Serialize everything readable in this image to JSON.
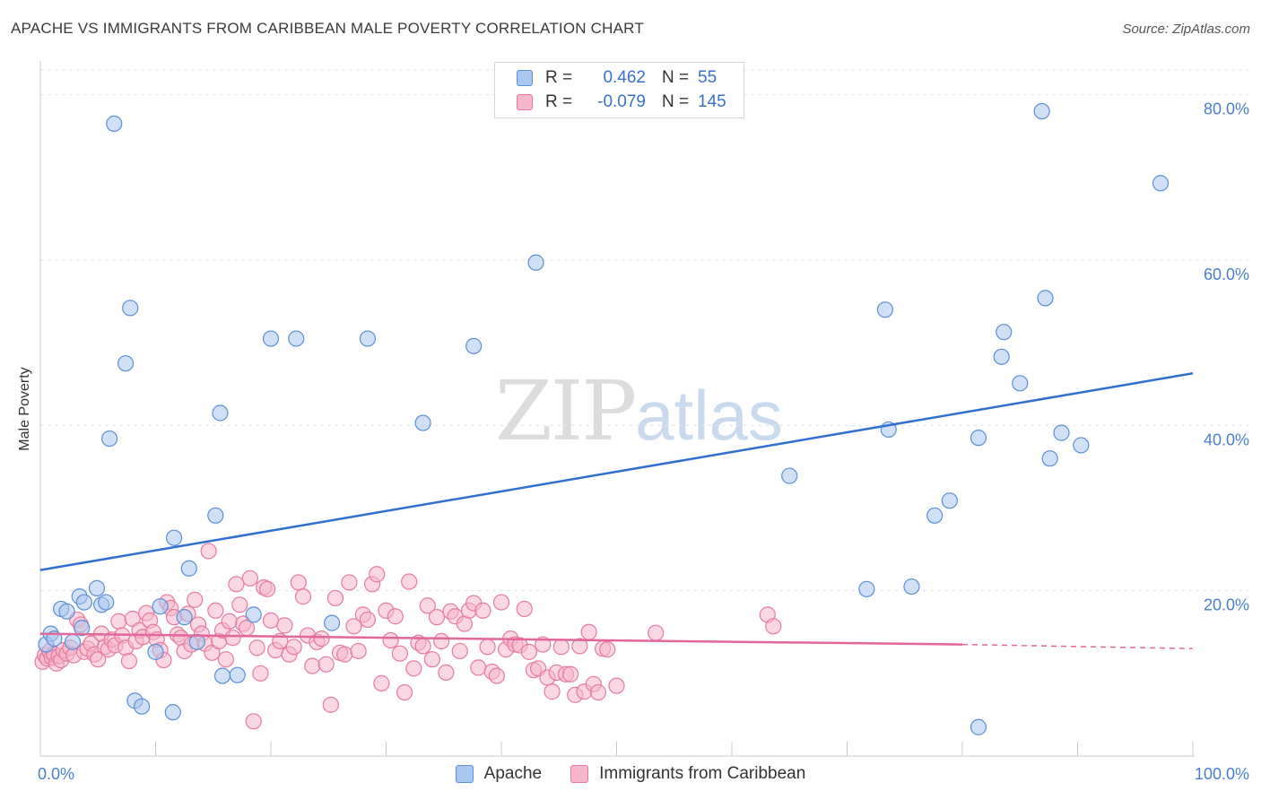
{
  "header": {
    "title": "APACHE VS IMMIGRANTS FROM CARIBBEAN MALE POVERTY CORRELATION CHART",
    "source": "Source: ZipAtlas.com"
  },
  "legend": {
    "series1": {
      "r_label": "R =",
      "r_value": "0.462",
      "n_label": "N =",
      "n_value": "55"
    },
    "series2": {
      "r_label": "R =",
      "r_value": "-0.079",
      "n_label": "N =",
      "n_value": "145"
    }
  },
  "watermark": {
    "zip": "ZIP",
    "atlas": "atlas"
  },
  "colors": {
    "apache_fill": "#a9c7ee",
    "apache_stroke": "#5b8fd6",
    "apache_line": "#2f6fd0",
    "carib_fill": "#f6b7cb",
    "carib_stroke": "#e77aa0",
    "carib_line": "#e2679a",
    "grid": "#e3e3e3",
    "tick_label": "#4a7fd0"
  },
  "chart_data": {
    "type": "scatter",
    "title": "APACHE VS IMMIGRANTS FROM CARIBBEAN MALE POVERTY CORRELATION CHART",
    "xlabel": "",
    "ylabel": "Male Poverty",
    "xlim": [
      0,
      100
    ],
    "ylim": [
      0,
      83
    ],
    "x_tick_labels": [
      {
        "value": 0,
        "label": "0.0%"
      },
      {
        "value": 100,
        "label": "100.0%"
      }
    ],
    "y_tick_labels": [
      {
        "value": 20,
        "label": "20.0%"
      },
      {
        "value": 40,
        "label": "40.0%"
      },
      {
        "value": 60,
        "label": "60.0%"
      },
      {
        "value": 80,
        "label": "80.0%"
      }
    ],
    "grid": true,
    "legend_position": "top-center",
    "series": [
      {
        "name": "Apache",
        "r": 0.462,
        "n": 55,
        "trend": {
          "x": [
            0,
            100
          ],
          "y": [
            22.5,
            46.3
          ]
        },
        "points": [
          [
            0.5,
            13.5
          ],
          [
            0.9,
            14.8
          ],
          [
            1.2,
            14.2
          ],
          [
            1.8,
            17.8
          ],
          [
            2.3,
            17.5
          ],
          [
            2.8,
            13.8
          ],
          [
            3.4,
            19.3
          ],
          [
            3.6,
            15.5
          ],
          [
            3.8,
            18.6
          ],
          [
            4.9,
            20.3
          ],
          [
            5.3,
            18.3
          ],
          [
            5.7,
            18.6
          ],
          [
            6.4,
            76.5
          ],
          [
            6.0,
            38.4
          ],
          [
            7.4,
            47.5
          ],
          [
            7.8,
            54.2
          ],
          [
            8.2,
            6.7
          ],
          [
            8.8,
            6.0
          ],
          [
            10.0,
            12.6
          ],
          [
            10.4,
            18.1
          ],
          [
            11.5,
            5.3
          ],
          [
            11.6,
            26.4
          ],
          [
            12.5,
            16.8
          ],
          [
            12.9,
            22.7
          ],
          [
            13.6,
            13.8
          ],
          [
            15.2,
            29.1
          ],
          [
            15.6,
            41.5
          ],
          [
            15.8,
            9.7
          ],
          [
            17.1,
            9.8
          ],
          [
            18.5,
            17.1
          ],
          [
            20.0,
            50.5
          ],
          [
            22.2,
            50.5
          ],
          [
            25.3,
            16.1
          ],
          [
            28.4,
            50.5
          ],
          [
            33.2,
            40.3
          ],
          [
            37.6,
            49.6
          ],
          [
            43.0,
            59.7
          ],
          [
            65.0,
            33.9
          ],
          [
            71.7,
            20.2
          ],
          [
            73.3,
            54.0
          ],
          [
            73.6,
            39.5
          ],
          [
            75.6,
            20.5
          ],
          [
            77.6,
            29.1
          ],
          [
            78.9,
            30.9
          ],
          [
            81.4,
            3.5
          ],
          [
            81.4,
            38.5
          ],
          [
            83.4,
            48.3
          ],
          [
            83.6,
            51.3
          ],
          [
            85.0,
            45.1
          ],
          [
            86.9,
            78.0
          ],
          [
            87.2,
            55.4
          ],
          [
            87.6,
            36.0
          ],
          [
            88.6,
            39.1
          ],
          [
            90.3,
            37.6
          ],
          [
            97.2,
            69.3
          ]
        ]
      },
      {
        "name": "Immigrants from Caribbean",
        "r": -0.079,
        "n": 145,
        "trend": {
          "x": [
            0,
            80
          ],
          "y": [
            14.8,
            13.5
          ],
          "dashed_extension": {
            "x": [
              80,
              100
            ],
            "y": [
              13.5,
              13.0
            ]
          }
        },
        "points": [
          [
            0.2,
            11.4
          ],
          [
            0.4,
            12.2
          ],
          [
            0.6,
            11.8
          ],
          [
            0.8,
            12.7
          ],
          [
            1.0,
            11.9
          ],
          [
            1.2,
            12.3
          ],
          [
            1.4,
            11.2
          ],
          [
            1.6,
            12.1
          ],
          [
            1.8,
            11.6
          ],
          [
            2.0,
            12.8
          ],
          [
            2.3,
            12.4
          ],
          [
            2.6,
            13.1
          ],
          [
            2.9,
            12.2
          ],
          [
            3.2,
            16.5
          ],
          [
            3.5,
            15.9
          ],
          [
            3.8,
            12.6
          ],
          [
            4.1,
            13.0
          ],
          [
            4.4,
            13.6
          ],
          [
            4.7,
            12.3
          ],
          [
            5.0,
            11.7
          ],
          [
            5.3,
            14.8
          ],
          [
            5.6,
            13.2
          ],
          [
            5.9,
            12.9
          ],
          [
            6.2,
            14.1
          ],
          [
            6.5,
            13.4
          ],
          [
            6.8,
            16.3
          ],
          [
            7.1,
            14.6
          ],
          [
            7.4,
            13.1
          ],
          [
            7.7,
            11.5
          ],
          [
            8.0,
            16.6
          ],
          [
            8.3,
            13.9
          ],
          [
            8.6,
            15.2
          ],
          [
            8.9,
            14.4
          ],
          [
            9.2,
            17.3
          ],
          [
            9.5,
            16.4
          ],
          [
            9.8,
            15.0
          ],
          [
            10.1,
            14.1
          ],
          [
            10.4,
            12.8
          ],
          [
            10.7,
            11.6
          ],
          [
            11.0,
            18.6
          ],
          [
            11.3,
            17.9
          ],
          [
            11.6,
            16.8
          ],
          [
            11.9,
            14.7
          ],
          [
            12.2,
            14.3
          ],
          [
            12.5,
            12.7
          ],
          [
            12.8,
            17.2
          ],
          [
            13.1,
            13.5
          ],
          [
            13.4,
            18.9
          ],
          [
            13.7,
            15.9
          ],
          [
            14.0,
            14.8
          ],
          [
            14.3,
            13.6
          ],
          [
            14.6,
            24.8
          ],
          [
            14.9,
            12.5
          ],
          [
            15.2,
            17.6
          ],
          [
            15.5,
            13.9
          ],
          [
            15.8,
            15.2
          ],
          [
            16.1,
            11.7
          ],
          [
            16.4,
            16.3
          ],
          [
            16.7,
            14.3
          ],
          [
            17.0,
            20.8
          ],
          [
            17.3,
            18.3
          ],
          [
            17.6,
            16.0
          ],
          [
            17.9,
            15.5
          ],
          [
            18.2,
            21.5
          ],
          [
            18.5,
            4.2
          ],
          [
            18.8,
            13.1
          ],
          [
            19.1,
            10.0
          ],
          [
            19.4,
            20.4
          ],
          [
            19.7,
            20.2
          ],
          [
            20.0,
            16.4
          ],
          [
            20.4,
            12.8
          ],
          [
            20.8,
            13.9
          ],
          [
            21.2,
            15.8
          ],
          [
            21.6,
            12.3
          ],
          [
            22.0,
            13.2
          ],
          [
            22.4,
            21.0
          ],
          [
            22.8,
            19.3
          ],
          [
            23.2,
            14.6
          ],
          [
            23.6,
            10.9
          ],
          [
            24.0,
            13.8
          ],
          [
            24.4,
            14.2
          ],
          [
            24.8,
            11.1
          ],
          [
            25.2,
            6.2
          ],
          [
            25.6,
            19.1
          ],
          [
            26.0,
            12.5
          ],
          [
            26.4,
            12.3
          ],
          [
            26.8,
            21.0
          ],
          [
            27.2,
            15.7
          ],
          [
            27.6,
            12.7
          ],
          [
            28.0,
            17.1
          ],
          [
            28.4,
            16.5
          ],
          [
            28.8,
            20.8
          ],
          [
            29.2,
            22.0
          ],
          [
            29.6,
            8.8
          ],
          [
            30.0,
            17.6
          ],
          [
            30.4,
            14.0
          ],
          [
            30.8,
            16.9
          ],
          [
            31.2,
            12.4
          ],
          [
            31.6,
            7.7
          ],
          [
            32.0,
            21.1
          ],
          [
            32.4,
            10.6
          ],
          [
            32.8,
            13.7
          ],
          [
            33.2,
            13.3
          ],
          [
            33.6,
            18.2
          ],
          [
            34.0,
            11.7
          ],
          [
            34.4,
            16.8
          ],
          [
            34.8,
            13.9
          ],
          [
            35.2,
            10.1
          ],
          [
            35.6,
            17.5
          ],
          [
            36.0,
            16.9
          ],
          [
            36.4,
            12.7
          ],
          [
            36.8,
            16.0
          ],
          [
            37.2,
            17.6
          ],
          [
            37.6,
            18.5
          ],
          [
            38.0,
            10.7
          ],
          [
            38.4,
            17.6
          ],
          [
            38.8,
            13.2
          ],
          [
            39.2,
            10.2
          ],
          [
            39.6,
            9.7
          ],
          [
            40.0,
            18.6
          ],
          [
            40.4,
            12.9
          ],
          [
            40.8,
            14.2
          ],
          [
            41.2,
            13.5
          ],
          [
            41.6,
            13.4
          ],
          [
            42.0,
            17.8
          ],
          [
            42.4,
            12.6
          ],
          [
            42.8,
            10.4
          ],
          [
            43.2,
            10.6
          ],
          [
            43.6,
            13.5
          ],
          [
            44.0,
            9.5
          ],
          [
            44.4,
            7.8
          ],
          [
            44.8,
            10.1
          ],
          [
            45.2,
            13.2
          ],
          [
            45.6,
            9.9
          ],
          [
            46.0,
            9.9
          ],
          [
            46.4,
            7.4
          ],
          [
            46.8,
            13.3
          ],
          [
            47.2,
            7.8
          ],
          [
            47.6,
            15.0
          ],
          [
            48.0,
            8.7
          ],
          [
            48.4,
            7.7
          ],
          [
            48.8,
            13.0
          ],
          [
            49.2,
            12.9
          ],
          [
            50.0,
            8.5
          ],
          [
            53.4,
            14.9
          ],
          [
            63.1,
            17.1
          ],
          [
            63.6,
            15.7
          ]
        ]
      }
    ]
  }
}
